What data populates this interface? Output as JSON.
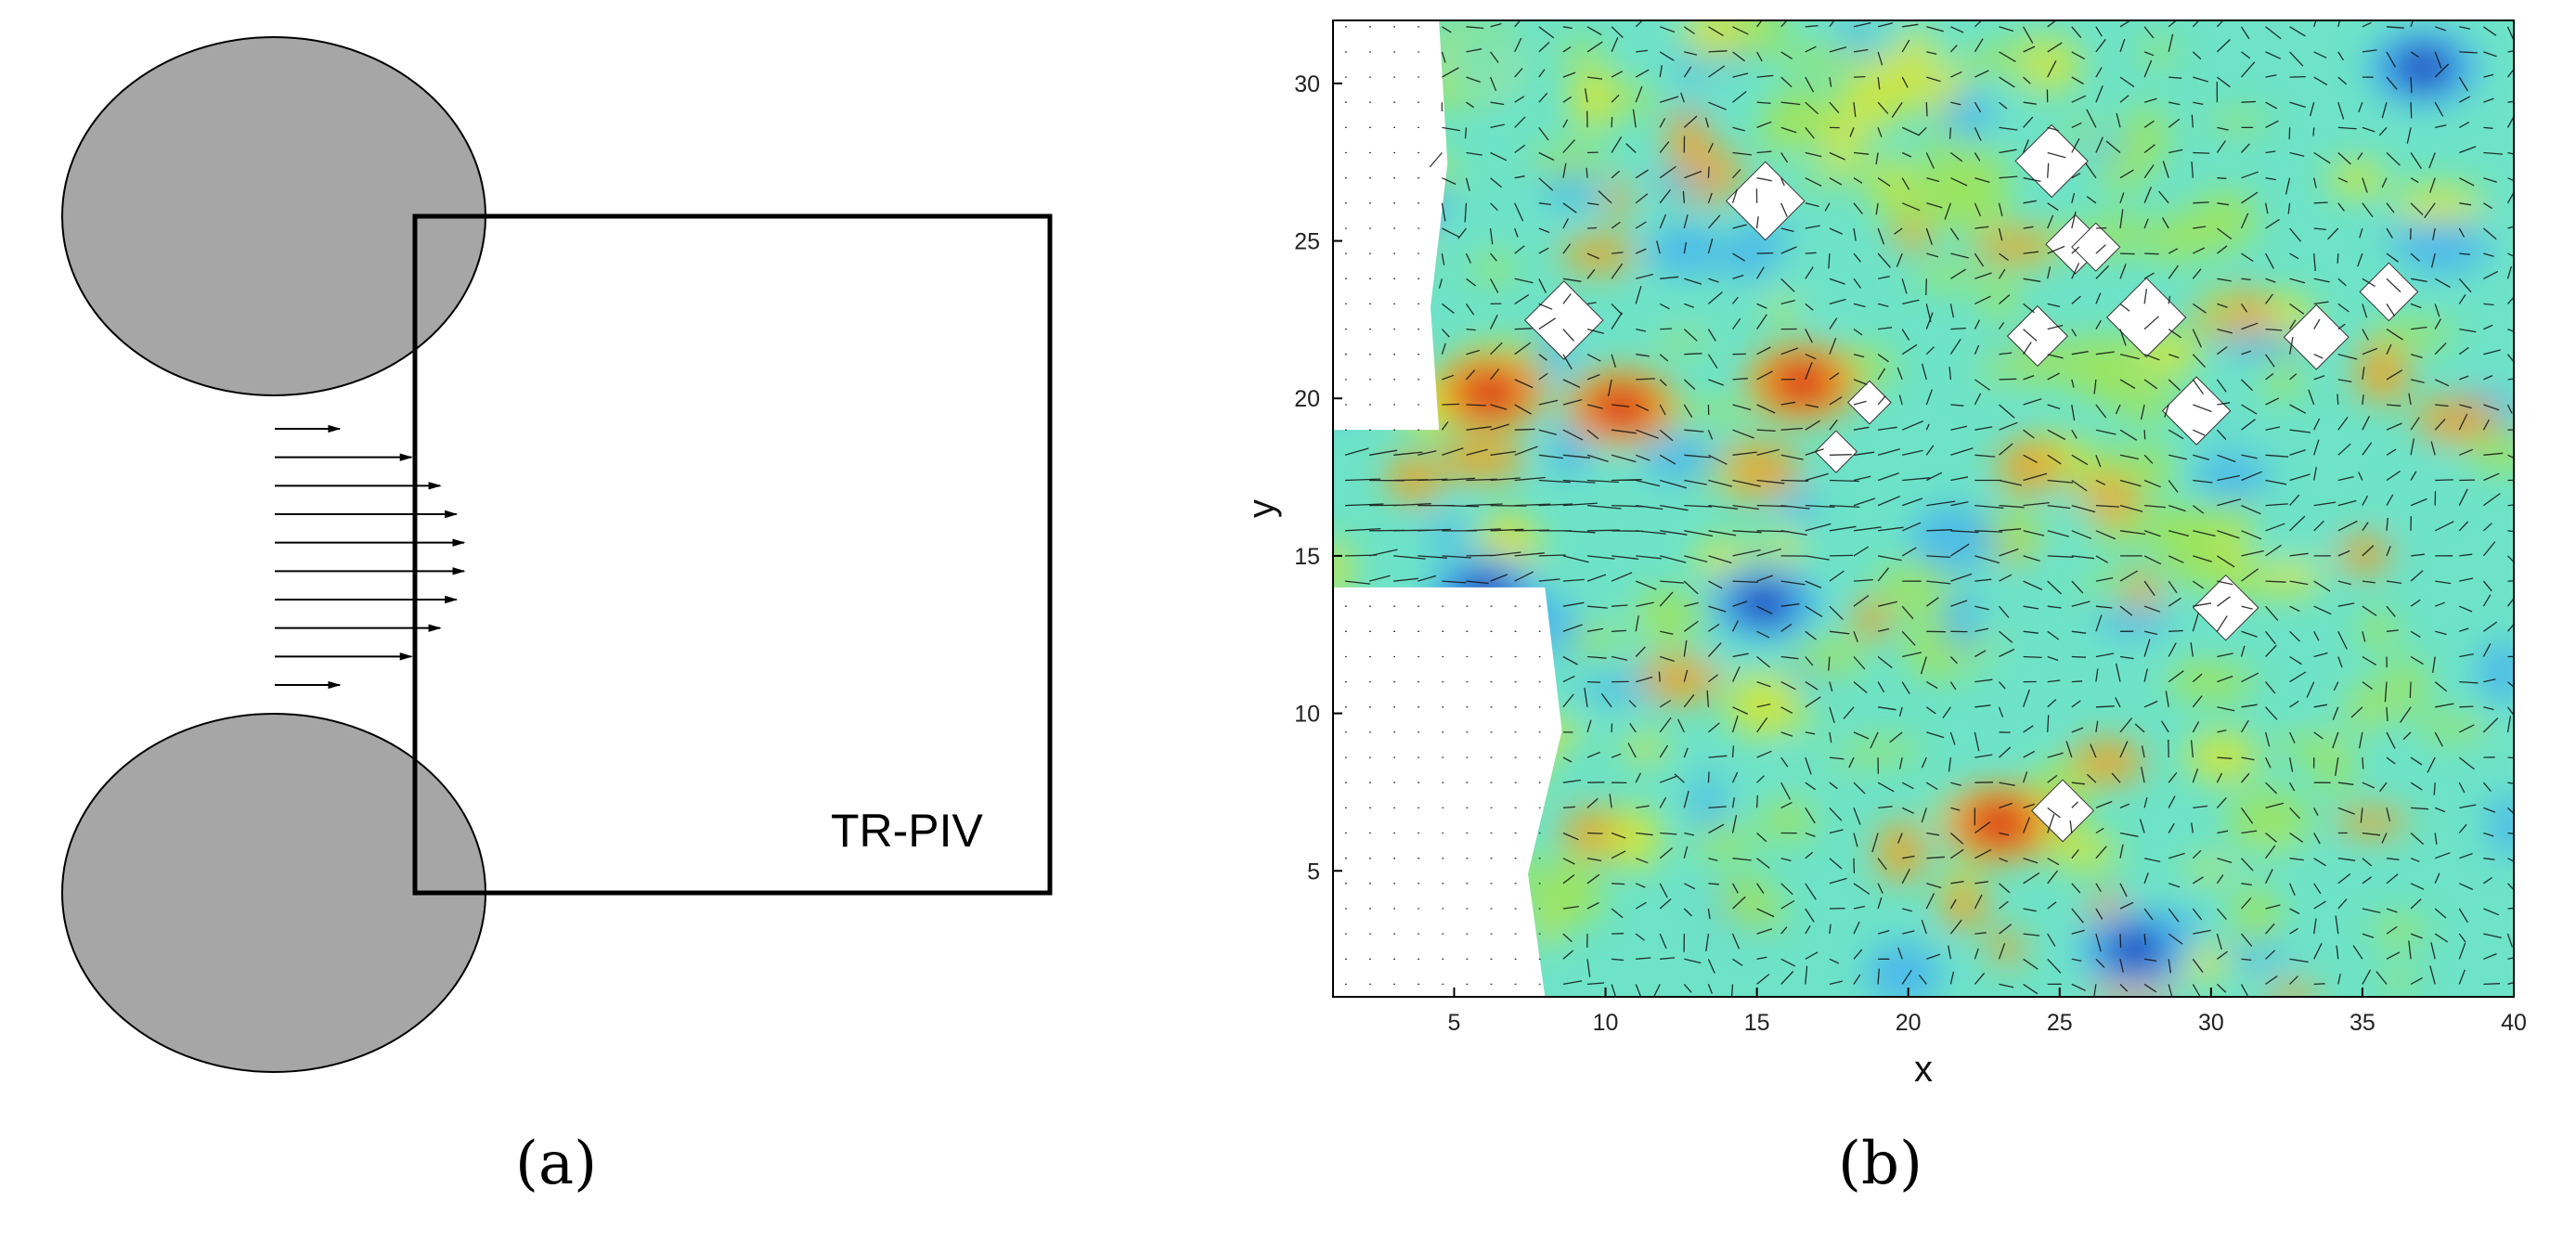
{
  "panel_a": {
    "box_label": "TR-PIV",
    "caption": "(a)",
    "cylinder_color": "#a6a6a6",
    "jet_profile_arrow_count": 10
  },
  "panel_b": {
    "caption": "(b)",
    "xlabel": "x",
    "ylabel": "y",
    "x_ticks": [
      "5",
      "10",
      "15",
      "20",
      "25",
      "30",
      "35",
      "40"
    ],
    "y_ticks": [
      "5",
      "10",
      "15",
      "20",
      "25",
      "30"
    ]
  },
  "chart_data": {
    "type": "heatmap",
    "xlim": [
      1,
      40
    ],
    "ylim": [
      1,
      32
    ],
    "grid": false,
    "colormap": [
      "#1f3fbf",
      "#46b4f0",
      "#6ee3c8",
      "#9fe45a",
      "#d8e62e",
      "#f2a21e",
      "#d9241c"
    ],
    "overlay": "velocity vector field (quiver) with vorticity contours",
    "jet_axis_y": 16.5,
    "masked_regions": [
      {
        "x": [
          1,
          4.5
        ],
        "y": [
          19,
          32
        ]
      },
      {
        "x": [
          1,
          8
        ],
        "y": [
          1,
          14
        ]
      }
    ],
    "vorticity_extremes": [
      {
        "x": 6.2,
        "y": 20.2,
        "sign": "positive"
      },
      {
        "x": 16.5,
        "y": 20.5,
        "sign": "positive"
      },
      {
        "x": 10.5,
        "y": 19.7,
        "sign": "positive"
      },
      {
        "x": 23,
        "y": 6.5,
        "sign": "positive"
      },
      {
        "x": 6,
        "y": 13.8,
        "sign": "negative"
      },
      {
        "x": 15.2,
        "y": 13.5,
        "sign": "negative"
      },
      {
        "x": 37,
        "y": 30.5,
        "sign": "negative"
      },
      {
        "x": 27.5,
        "y": 2.5,
        "sign": "negative"
      }
    ]
  }
}
